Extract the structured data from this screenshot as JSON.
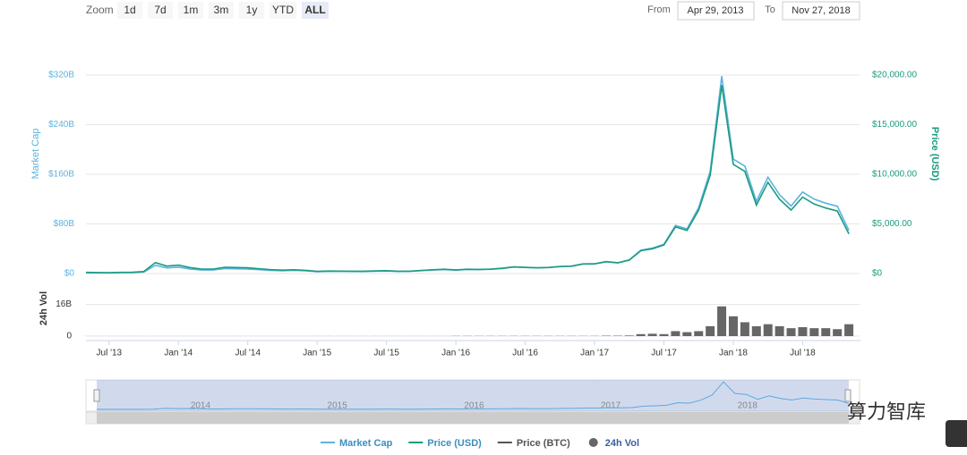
{
  "zoom": {
    "label": "Zoom",
    "buttons": [
      "1d",
      "7d",
      "1m",
      "3m",
      "1y",
      "YTD",
      "ALL"
    ],
    "selected": 6
  },
  "range": {
    "from_label": "From",
    "from": "Apr 29, 2013",
    "to_label": "To",
    "to": "Nov 27, 2018"
  },
  "watermark": "算力智库",
  "chart_data": {
    "type": "line",
    "x": [
      "2013-05",
      "2013-06",
      "2013-07",
      "2013-08",
      "2013-09",
      "2013-10",
      "2013-11",
      "2013-12",
      "2014-01",
      "2014-02",
      "2014-03",
      "2014-04",
      "2014-05",
      "2014-06",
      "2014-07",
      "2014-08",
      "2014-09",
      "2014-10",
      "2014-11",
      "2014-12",
      "2015-01",
      "2015-02",
      "2015-03",
      "2015-04",
      "2015-05",
      "2015-06",
      "2015-07",
      "2015-08",
      "2015-09",
      "2015-10",
      "2015-11",
      "2015-12",
      "2016-01",
      "2016-02",
      "2016-03",
      "2016-04",
      "2016-05",
      "2016-06",
      "2016-07",
      "2016-08",
      "2016-09",
      "2016-10",
      "2016-11",
      "2016-12",
      "2017-01",
      "2017-02",
      "2017-03",
      "2017-04",
      "2017-05",
      "2017-06",
      "2017-07",
      "2017-08",
      "2017-09",
      "2017-10",
      "2017-11",
      "2017-12",
      "2018-01",
      "2018-02",
      "2018-03",
      "2018-04",
      "2018-05",
      "2018-06",
      "2018-07",
      "2018-08",
      "2018-09",
      "2018-10",
      "2018-11"
    ],
    "xlim": [
      "2013-05",
      "2018-12"
    ],
    "xticks": [
      {
        "value": "2013-07",
        "label": "Jul '13"
      },
      {
        "value": "2014-01",
        "label": "Jan '14"
      },
      {
        "value": "2014-07",
        "label": "Jul '14"
      },
      {
        "value": "2015-01",
        "label": "Jan '15"
      },
      {
        "value": "2015-07",
        "label": "Jul '15"
      },
      {
        "value": "2016-01",
        "label": "Jan '16"
      },
      {
        "value": "2016-07",
        "label": "Jul '16"
      },
      {
        "value": "2017-01",
        "label": "Jan '17"
      },
      {
        "value": "2017-07",
        "label": "Jul '17"
      },
      {
        "value": "2018-01",
        "label": "Jan '18"
      },
      {
        "value": "2018-07",
        "label": "Jul '18"
      }
    ],
    "ylabel": "Market Cap",
    "ylim": [
      0,
      320
    ],
    "yticks": [
      {
        "value": 0,
        "label": "$0"
      },
      {
        "value": 80,
        "label": "$80B"
      },
      {
        "value": 160,
        "label": "$160B"
      },
      {
        "value": 240,
        "label": "$240B"
      },
      {
        "value": 320,
        "label": "$320B"
      }
    ],
    "y2label": "Price (USD)",
    "y2lim": [
      0,
      20000
    ],
    "y2ticks": [
      {
        "value": 0,
        "label": "$0"
      },
      {
        "value": 5000,
        "label": "$5,000.00"
      },
      {
        "value": 10000,
        "label": "$10,000.00"
      },
      {
        "value": 15000,
        "label": "$15,000.00"
      },
      {
        "value": 20000,
        "label": "$20,000.00"
      }
    ],
    "y3label": "24h Vol",
    "y3lim": [
      0,
      23
    ],
    "y3ticks": [
      0,
      {
        "value": 16,
        "label": "16B"
      }
    ],
    "grid": true,
    "series": [
      {
        "name": "Market Cap",
        "color": "#5cb3e0",
        "axis": "y",
        "values": [
          1.3,
          1.1,
          1.0,
          1.4,
          1.5,
          2.4,
          13.3,
          9.1,
          10.4,
          7.4,
          5.6,
          5.6,
          7.9,
          7.6,
          7.4,
          6.2,
          5.1,
          4.5,
          5.1,
          4.3,
          3.0,
          3.4,
          3.4,
          3.3,
          3.2,
          3.7,
          4.1,
          3.3,
          3.4,
          4.6,
          5.6,
          6.4,
          5.5,
          6.5,
          6.3,
          6.8,
          8.1,
          10.5,
          9.8,
          9.1,
          9.7,
          11.2,
          11.9,
          15.5,
          15.7,
          19.3,
          17.4,
          22.1,
          37.6,
          41.0,
          47.3,
          77.6,
          71.9,
          106.4,
          165.1,
          318.2,
          184.5,
          173.2,
          116.2,
          155.4,
          127.2,
          108.9,
          131.5,
          119.9,
          113.5,
          108.5,
          69.6
        ]
      },
      {
        "name": "Price (USD)",
        "color": "#1b9b7e",
        "axis": "y2",
        "values": [
          120,
          100,
          90,
          120,
          130,
          200,
          1100,
          750,
          850,
          600,
          450,
          450,
          630,
          600,
          580,
          480,
          390,
          340,
          380,
          320,
          220,
          250,
          245,
          235,
          230,
          260,
          285,
          230,
          235,
          315,
          380,
          430,
          370,
          435,
          415,
          450,
          530,
          670,
          625,
          575,
          610,
          700,
          740,
          960,
          970,
          1190,
          1070,
          1350,
          2300,
          2500,
          2870,
          4700,
          4340,
          6400,
          9900,
          19000,
          11000,
          10300,
          6900,
          9200,
          7500,
          6400,
          7700,
          7000,
          6600,
          6300,
          4000
        ]
      },
      {
        "name": "Price (BTC)",
        "color": "#555555",
        "visible": false
      },
      {
        "name": "24h Vol",
        "color": "#666666",
        "axis": "y3",
        "type": "bar",
        "values": [
          0.02,
          0.02,
          0.02,
          0.02,
          0.02,
          0.02,
          0.02,
          0.02,
          0.02,
          0.02,
          0.02,
          0.02,
          0.02,
          0.02,
          0.02,
          0.02,
          0.02,
          0.02,
          0.02,
          0.02,
          0.03,
          0.03,
          0.03,
          0.03,
          0.03,
          0.03,
          0.03,
          0.03,
          0.03,
          0.03,
          0.03,
          0.03,
          0.1,
          0.1,
          0.1,
          0.1,
          0.1,
          0.1,
          0.1,
          0.1,
          0.1,
          0.1,
          0.1,
          0.1,
          0.1,
          0.2,
          0.2,
          0.3,
          1.0,
          1.2,
          1.0,
          2.5,
          2.0,
          2.5,
          5.0,
          15,
          10,
          7,
          5,
          6,
          5,
          4,
          4.5,
          4,
          4,
          3.5,
          6
        ]
      }
    ],
    "navigator": {
      "xticks": [
        {
          "value": "2014-01",
          "label": "2014"
        },
        {
          "value": "2015-01",
          "label": "2015"
        },
        {
          "value": "2016-01",
          "label": "2016"
        },
        {
          "value": "2017-01",
          "label": "2017"
        },
        {
          "value": "2018-01",
          "label": "2018"
        }
      ]
    }
  }
}
